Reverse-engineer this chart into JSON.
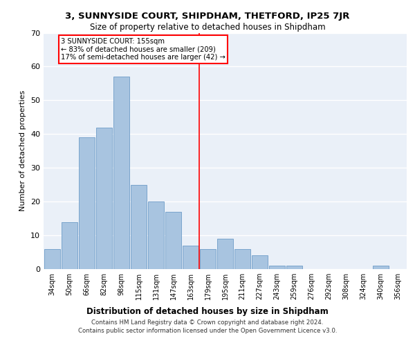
{
  "title": "3, SUNNYSIDE COURT, SHIPDHAM, THETFORD, IP25 7JR",
  "subtitle": "Size of property relative to detached houses in Shipdham",
  "xlabel": "Distribution of detached houses by size in Shipdham",
  "ylabel": "Number of detached properties",
  "bar_color": "#a8c4e0",
  "bar_edgecolor": "#5a8fc0",
  "categories": [
    "34sqm",
    "50sqm",
    "66sqm",
    "82sqm",
    "98sqm",
    "115sqm",
    "131sqm",
    "147sqm",
    "163sqm",
    "179sqm",
    "195sqm",
    "211sqm",
    "227sqm",
    "243sqm",
    "259sqm",
    "276sqm",
    "292sqm",
    "308sqm",
    "324sqm",
    "340sqm",
    "356sqm"
  ],
  "values": [
    6,
    14,
    39,
    42,
    57,
    25,
    20,
    17,
    7,
    6,
    9,
    6,
    4,
    1,
    1,
    0,
    0,
    0,
    0,
    1,
    0
  ],
  "ylim": [
    0,
    70
  ],
  "yticks": [
    0,
    10,
    20,
    30,
    40,
    50,
    60,
    70
  ],
  "vline_pos": 8.5,
  "annotation_text_line1": "3 SUNNYSIDE COURT: 155sqm",
  "annotation_text_line2": "← 83% of detached houses are smaller (209)",
  "annotation_text_line3": "17% of semi-detached houses are larger (42) →",
  "bg_color": "#eaf0f8",
  "footer_line1": "Contains HM Land Registry data © Crown copyright and database right 2024.",
  "footer_line2": "Contains public sector information licensed under the Open Government Licence v3.0."
}
